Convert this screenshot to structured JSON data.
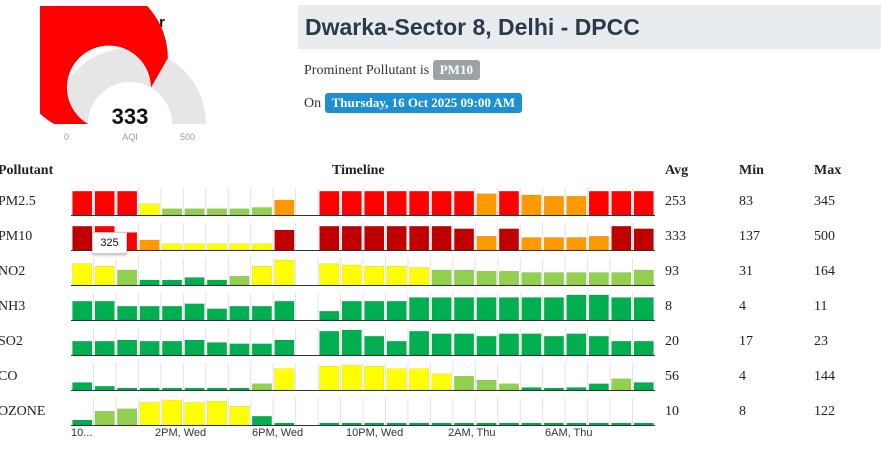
{
  "gauge": {
    "category": "Very Poor",
    "value": "333",
    "unit": "AQI",
    "min_label": "0",
    "max_label": "500",
    "fraction": 0.666,
    "color": "#ff0000"
  },
  "station": {
    "title": "Dwarka-Sector 8, Delhi - DPCC",
    "prominent_label": "Prominent Pollutant is",
    "prominent_value": "PM10",
    "on_label": "On",
    "datetime": "Thursday, 16 Oct 2025 09:00 AM"
  },
  "table": {
    "headers": {
      "pollutant": "Pollutant",
      "timeline": "Timeline",
      "avg": "Avg",
      "min": "Min",
      "max": "Max"
    },
    "rows": [
      {
        "name": "PM2.5",
        "avg": "253",
        "min": "83",
        "max": "345"
      },
      {
        "name": "PM10",
        "avg": "333",
        "min": "137",
        "max": "500"
      },
      {
        "name": "NO2",
        "avg": "93",
        "min": "31",
        "max": "164"
      },
      {
        "name": "NH3",
        "avg": "8",
        "min": "4",
        "max": "11"
      },
      {
        "name": "SO2",
        "avg": "20",
        "min": "17",
        "max": "23"
      },
      {
        "name": "CO",
        "avg": "56",
        "min": "4",
        "max": "144"
      },
      {
        "name": "OZONE",
        "avg": "10",
        "min": "8",
        "max": "122"
      }
    ]
  },
  "tooltip": {
    "value": "325"
  },
  "chart_data": {
    "type": "bar",
    "title": "Timeline",
    "x_tick_labels": [
      "10...",
      "2PM, Wed",
      "6PM, Wed",
      "10PM, Wed",
      "2AM, Thu",
      "6AM, Thu"
    ],
    "level_colors": {
      "1": "#00b050",
      "2": "#92d050",
      "3": "#ffff00",
      "4": "#ff9900",
      "5": "#ff0000",
      "6": "#c00000"
    },
    "series": [
      {
        "name": "PM2.5",
        "values": [
          0.95,
          0.95,
          0.95,
          0.45,
          0.25,
          0.25,
          0.25,
          0.25,
          0.3,
          0.6,
          null,
          0.95,
          0.95,
          0.95,
          0.95,
          0.95,
          0.95,
          0.95,
          0.85,
          0.95,
          0.8,
          0.75,
          0.75,
          0.95,
          0.95,
          0.95
        ],
        "levels": [
          5,
          5,
          5,
          3,
          2,
          2,
          2,
          2,
          2,
          4,
          null,
          5,
          5,
          5,
          5,
          5,
          5,
          5,
          4,
          5,
          4,
          4,
          4,
          5,
          5,
          5
        ]
      },
      {
        "name": "PM10",
        "values": [
          0.95,
          0.95,
          0.7,
          0.4,
          0.25,
          0.25,
          0.25,
          0.25,
          0.25,
          0.8,
          null,
          0.95,
          0.95,
          0.95,
          0.95,
          0.95,
          0.95,
          0.85,
          0.55,
          0.85,
          0.5,
          0.5,
          0.5,
          0.55,
          0.95,
          0.85
        ],
        "levels": [
          6,
          5,
          5,
          4,
          3,
          3,
          3,
          3,
          3,
          6,
          null,
          6,
          6,
          6,
          6,
          6,
          6,
          6,
          4,
          6,
          4,
          4,
          4,
          4,
          6,
          6
        ]
      },
      {
        "name": "NO2",
        "values": [
          0.85,
          0.75,
          0.6,
          0.2,
          0.2,
          0.3,
          0.2,
          0.35,
          0.75,
          1.0,
          null,
          0.85,
          0.8,
          0.75,
          0.75,
          0.7,
          0.6,
          0.6,
          0.55,
          0.55,
          0.5,
          0.5,
          0.5,
          0.5,
          0.5,
          0.6
        ],
        "levels": [
          3,
          3,
          2,
          1,
          1,
          1,
          1,
          2,
          3,
          3,
          null,
          3,
          3,
          3,
          3,
          3,
          2,
          2,
          2,
          2,
          2,
          2,
          2,
          2,
          2,
          2
        ]
      },
      {
        "name": "NH3",
        "values": [
          0.75,
          0.75,
          0.55,
          0.55,
          0.55,
          0.65,
          0.45,
          0.55,
          0.55,
          0.75,
          null,
          0.35,
          0.75,
          0.75,
          0.75,
          0.9,
          0.9,
          0.9,
          0.9,
          0.9,
          0.9,
          0.9,
          1.0,
          1.0,
          0.9,
          0.9
        ],
        "levels": [
          1,
          1,
          1,
          1,
          1,
          1,
          1,
          1,
          1,
          1,
          null,
          1,
          1,
          1,
          1,
          1,
          1,
          1,
          1,
          1,
          1,
          1,
          1,
          1,
          1,
          1
        ]
      },
      {
        "name": "SO2",
        "values": [
          0.55,
          0.55,
          0.6,
          0.55,
          0.55,
          0.6,
          0.5,
          0.45,
          0.45,
          0.6,
          null,
          0.95,
          1.0,
          0.75,
          0.55,
          0.95,
          0.85,
          0.85,
          0.75,
          0.85,
          0.85,
          0.75,
          0.85,
          0.75,
          0.55,
          0.55
        ],
        "levels": [
          1,
          1,
          1,
          1,
          1,
          1,
          1,
          1,
          1,
          1,
          null,
          1,
          1,
          1,
          1,
          1,
          1,
          1,
          1,
          1,
          1,
          1,
          1,
          1,
          1,
          1
        ]
      },
      {
        "name": "CO",
        "values": [
          0.3,
          0.15,
          0.05,
          0.05,
          0.05,
          0.05,
          0.05,
          0.05,
          0.25,
          0.85,
          null,
          0.95,
          1.0,
          0.95,
          0.85,
          0.85,
          0.65,
          0.55,
          0.4,
          0.25,
          0.1,
          0.05,
          0.1,
          0.25,
          0.45,
          0.3
        ],
        "levels": [
          1,
          1,
          1,
          1,
          1,
          1,
          1,
          1,
          2,
          3,
          null,
          3,
          3,
          3,
          3,
          3,
          3,
          2,
          2,
          2,
          1,
          1,
          1,
          1,
          2,
          1
        ]
      },
      {
        "name": "OZONE",
        "values": [
          0.2,
          0.55,
          0.65,
          0.9,
          1.0,
          0.9,
          0.95,
          0.75,
          0.35,
          0.05,
          null,
          0.05,
          0.05,
          0.05,
          0.05,
          0.05,
          0.05,
          0.05,
          0.05,
          0.05,
          0.05,
          0.05,
          0.05,
          0.05,
          0.05,
          0.05
        ],
        "levels": [
          1,
          2,
          2,
          3,
          3,
          3,
          3,
          3,
          1,
          1,
          null,
          1,
          1,
          1,
          1,
          1,
          1,
          1,
          1,
          1,
          1,
          1,
          1,
          1,
          1,
          1
        ]
      }
    ]
  }
}
